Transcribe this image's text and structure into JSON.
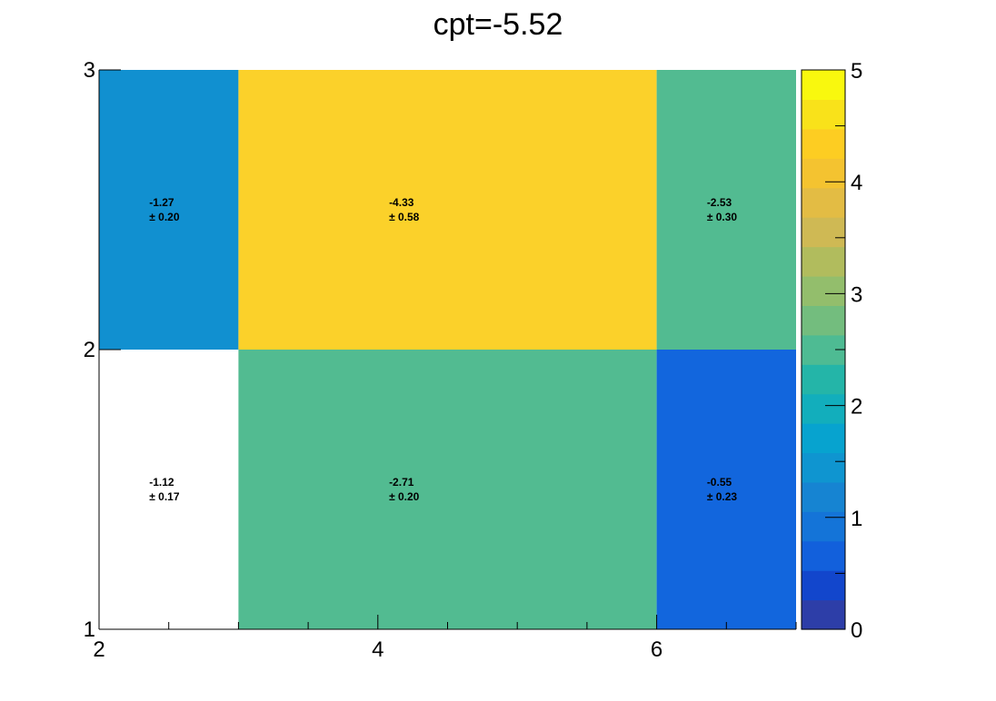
{
  "chart_data": {
    "type": "heatmap",
    "title": "cpt=-5.52",
    "xlabel": "",
    "ylabel": "",
    "x_edges": [
      2,
      3,
      6,
      7
    ],
    "y_edges": [
      1,
      2,
      3
    ],
    "xlim": [
      2,
      7
    ],
    "ylim": [
      1,
      3
    ],
    "x_ticks": [
      "2",
      "4",
      "6"
    ],
    "y_ticks": [
      "1",
      "2",
      "3"
    ],
    "z_range": [
      0,
      5
    ],
    "z_ticks": [
      "0",
      "1",
      "2",
      "3",
      "4",
      "5"
    ],
    "cells": [
      {
        "x": [
          2,
          3
        ],
        "y": [
          2,
          3
        ],
        "value": -1.27,
        "error": 0.2,
        "value_label": "-1.27",
        "error_label": "± 0.20",
        "color": "#1190d0"
      },
      {
        "x": [
          3,
          6
        ],
        "y": [
          2,
          3
        ],
        "value": -4.33,
        "error": 0.58,
        "value_label": "-4.33",
        "error_label": "± 0.58",
        "color": "#fbd12a"
      },
      {
        "x": [
          6,
          7
        ],
        "y": [
          2,
          3
        ],
        "value": -2.53,
        "error": 0.3,
        "value_label": "-2.53",
        "error_label": "± 0.30",
        "color": "#52bb91"
      },
      {
        "x": [
          2,
          3
        ],
        "y": [
          1,
          2
        ],
        "value": -1.12,
        "error": 0.17,
        "value_label": "-1.12",
        "error_label": "± 0.17",
        "color": "#ffffff"
      },
      {
        "x": [
          3,
          6
        ],
        "y": [
          1,
          2
        ],
        "value": -2.71,
        "error": 0.2,
        "value_label": "-2.71",
        "error_label": "± 0.20",
        "color": "#52bb91"
      },
      {
        "x": [
          6,
          7
        ],
        "y": [
          1,
          2
        ],
        "value": -0.55,
        "error": 0.23,
        "value_label": "-0.55",
        "error_label": "± 0.23",
        "color": "#1266dd"
      }
    ],
    "palette": [
      "#2d3ea8",
      "#1246cc",
      "#1260dc",
      "#1474d8",
      "#1684d2",
      "#0f95d0",
      "#07a3cf",
      "#12aebc",
      "#24b5a8",
      "#4ebb93",
      "#73bd7e",
      "#93be6c",
      "#b1bc5d",
      "#cfb954",
      "#e3bc44",
      "#f4c330",
      "#fdcd22",
      "#f9e21a",
      "#f9f80e"
    ]
  }
}
